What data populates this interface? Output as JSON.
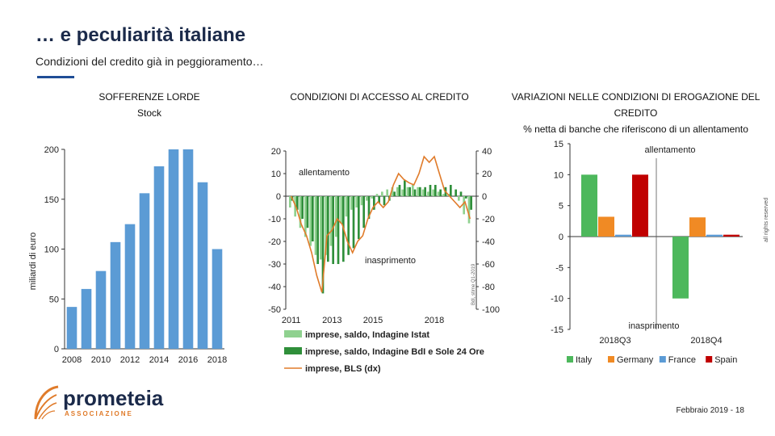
{
  "slide": {
    "title": "… e peculiarità italiane",
    "subtitle": "Condizioni del credito già in peggioramento…",
    "footer": "Febbraio 2019 - 18",
    "rights": "all rights reserved",
    "logo": {
      "name": "prometeia",
      "tagline": "ASSOCIAZIONE"
    }
  },
  "colors": {
    "bar_blue": "#5b9bd5",
    "green_light": "#8fd18f",
    "green_dark": "#2f8f3a",
    "orange_line": "#e07b2a",
    "italy": "#4db85c",
    "germany": "#f08a24",
    "france": "#5b9bd5",
    "spain": "#c00000"
  },
  "chart_data": [
    {
      "id": "sofferenze",
      "type": "bar",
      "title_line1": "SOFFERENZE LORDE",
      "title_line2": "Stock",
      "ylabel": "miliardi di euro",
      "ylim": [
        0,
        200
      ],
      "yticks": [
        "0",
        "50",
        "100",
        "150",
        "200"
      ],
      "xtick_labels": [
        "2008",
        "2010",
        "2012",
        "2014",
        "2016",
        "2018"
      ],
      "categories": [
        "2008",
        "2009",
        "2010",
        "2011",
        "2012",
        "2013",
        "2014",
        "2015",
        "2016",
        "2017",
        "2018"
      ],
      "values": [
        42,
        60,
        78,
        107,
        125,
        156,
        183,
        200,
        200,
        167,
        100
      ]
    },
    {
      "id": "accesso",
      "type": "bar+line",
      "title": "CONDIZIONI DI ACCESSO AL CREDITO",
      "ylim_left": [
        -50,
        20
      ],
      "yticks_left": [
        "20",
        "10",
        "0",
        "-10",
        "-20",
        "-30",
        "-40",
        "-50"
      ],
      "ylim_right": [
        -100,
        40
      ],
      "yticks_right": [
        "40",
        "20",
        "0",
        "-20",
        "-40",
        "-60",
        "-80",
        "-100"
      ],
      "xtick_labels": [
        "2011",
        "2013",
        "2015",
        "2018"
      ],
      "annotation_top": "allentamento",
      "annotation_bottom": "inasprimento",
      "source_note": "Bdl, stime Q1-2019",
      "series": [
        {
          "name": "imprese, saldo, Indagine Istat",
          "kind": "bar",
          "values": [
            -5,
            -9,
            -14,
            -18,
            -22,
            -26,
            -28,
            -26,
            -22,
            -18,
            -12,
            -9,
            -6,
            -5,
            -4,
            -2,
            -1,
            1,
            2,
            3,
            4,
            4,
            3,
            4,
            5,
            4,
            3,
            2,
            3,
            2,
            1,
            1,
            0,
            -2,
            -8,
            -12
          ]
        },
        {
          "name": "imprese, saldo, Indagine BdI e Sole 24 Ore",
          "kind": "bar",
          "values": [
            -2,
            -6,
            -10,
            -14,
            -20,
            -30,
            -43,
            -29,
            -30,
            -30,
            -29,
            -26,
            -23,
            -19,
            -14,
            -10,
            -6,
            -3,
            -4,
            -2,
            2,
            5,
            7,
            4,
            3,
            4,
            4,
            5,
            5,
            3,
            4,
            5,
            3,
            2,
            -1,
            -6
          ]
        },
        {
          "name": "imprese, BLS (dx)",
          "kind": "line",
          "values": [
            0,
            -10,
            -25,
            -35,
            -50,
            -70,
            -85,
            -35,
            -30,
            -20,
            -25,
            -40,
            -50,
            -40,
            -35,
            -20,
            -10,
            -5,
            -10,
            -5,
            10,
            20,
            15,
            12,
            10,
            20,
            35,
            30,
            35,
            20,
            5,
            0,
            -5,
            -10,
            -5,
            -20
          ]
        }
      ]
    },
    {
      "id": "erogazione",
      "type": "bar",
      "title_line1": "VARIAZIONI NELLE CONDIZIONI DI EROGAZIONE DEL",
      "title_line2": "CREDITO",
      "subtitle": "% netta di banche che riferiscono di un allentamento",
      "ylim": [
        -15,
        15
      ],
      "yticks": [
        "15",
        "10",
        "5",
        "0",
        "-5",
        "-10",
        "-15"
      ],
      "categories": [
        "2018Q3",
        "2018Q4"
      ],
      "annotation_top": "allentamento",
      "annotation_bottom": "inasprimento",
      "series": [
        {
          "name": "Italy",
          "values": [
            10,
            -10
          ]
        },
        {
          "name": "Germany",
          "values": [
            3.2,
            3.1
          ]
        },
        {
          "name": "France",
          "values": [
            0.3,
            0.3
          ]
        },
        {
          "name": "Spain",
          "values": [
            10,
            0.3
          ]
        }
      ]
    }
  ]
}
